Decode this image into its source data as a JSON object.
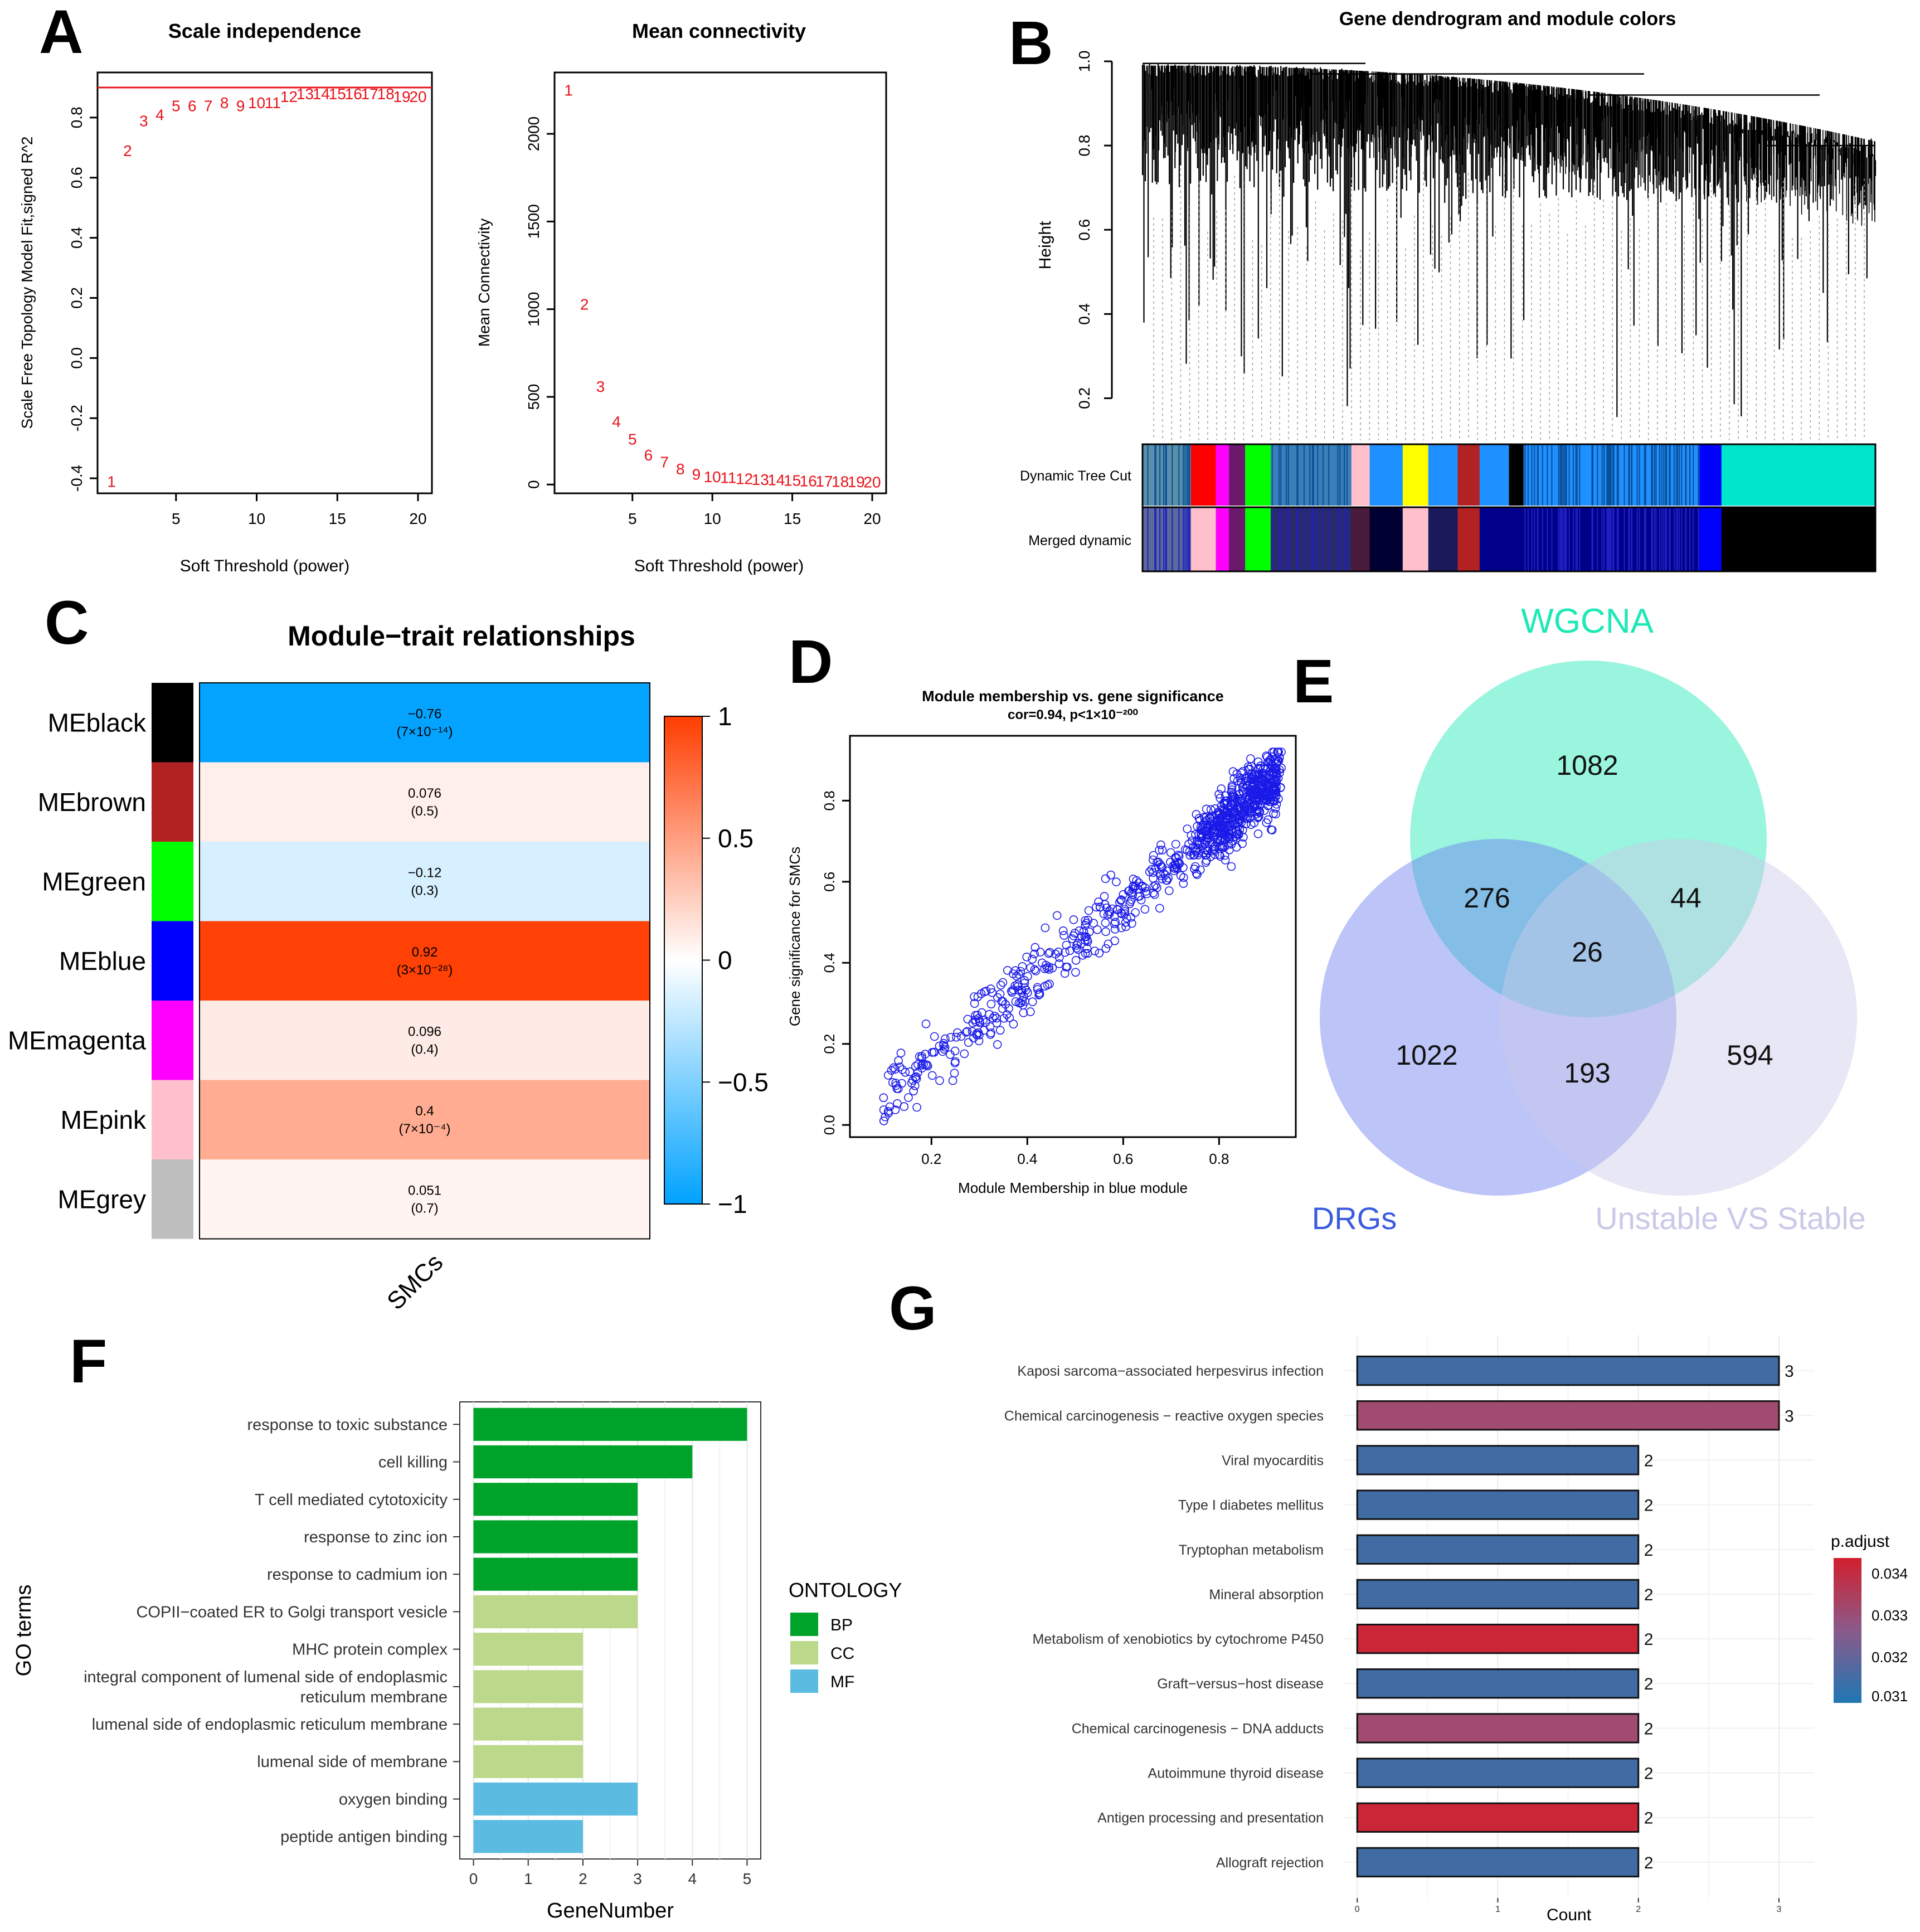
{
  "colors": {
    "red_marker": "#e8141c",
    "wgcna": "#1de9b6",
    "drgs": "#3a5be0",
    "unstable": "#c9c9e8",
    "bp": "#00a32a",
    "cc": "#bcd88a",
    "mf": "#5bbbe0",
    "kegg_blue": "#1f77b4",
    "kegg_mid": "#a24b70",
    "kegg_red": "#d1202e",
    "scatter_blue": "#1a1ae8",
    "heat_pos": "#ff3d00",
    "heat_neg": "#00a2ff"
  },
  "panels": {
    "A": "A",
    "B": "B",
    "C": "C",
    "D": "D",
    "E": "E",
    "F": "F",
    "G": "G"
  },
  "chart_data": [
    {
      "id": "A1",
      "type": "scatter",
      "title": "Scale independence",
      "xlabel": "Soft Threshold (power)",
      "ylabel": "Scale Free Topology Model Fit,signed R^2",
      "xlim": [
        1,
        20
      ],
      "ylim": [
        -0.45,
        0.95
      ],
      "xticks": [
        5,
        10,
        15,
        20
      ],
      "yticks": [
        -0.4,
        -0.2,
        0.0,
        0.2,
        0.4,
        0.6,
        0.8
      ],
      "ytick_labels": [
        "-0.4",
        "-0.2",
        "0.0",
        "0.2",
        "0.4",
        "0.6",
        "0.8"
      ],
      "hline": 0.9,
      "x": [
        1,
        2,
        3,
        4,
        5,
        6,
        7,
        8,
        9,
        10,
        11,
        12,
        13,
        14,
        15,
        16,
        17,
        18,
        19,
        20
      ],
      "y": [
        -0.41,
        0.69,
        0.79,
        0.81,
        0.84,
        0.84,
        0.84,
        0.85,
        0.84,
        0.85,
        0.85,
        0.87,
        0.88,
        0.88,
        0.88,
        0.88,
        0.88,
        0.88,
        0.87,
        0.87
      ],
      "labels": [
        "1",
        "2",
        "3",
        "4",
        "5",
        "6",
        "7",
        "8",
        "9",
        "10",
        "11",
        "12",
        "13",
        "14",
        "15",
        "16",
        "17",
        "18",
        "19",
        "20"
      ]
    },
    {
      "id": "A2",
      "type": "scatter",
      "title": "Mean connectivity",
      "xlabel": "Soft Threshold (power)",
      "ylabel": "Mean Connectivity",
      "xlim": [
        1,
        20
      ],
      "ylim": [
        -50,
        2350
      ],
      "xticks": [
        5,
        10,
        15,
        20
      ],
      "yticks": [
        0,
        500,
        1000,
        1500,
        2000
      ],
      "ytick_labels": [
        "0",
        "500",
        "1000",
        "1500",
        "2000"
      ],
      "x": [
        1,
        2,
        3,
        4,
        5,
        6,
        7,
        8,
        9,
        10,
        11,
        12,
        13,
        14,
        15,
        16,
        17,
        18,
        19,
        20
      ],
      "y": [
        2250,
        1030,
        560,
        360,
        260,
        170,
        130,
        90,
        60,
        45,
        40,
        35,
        30,
        28,
        25,
        22,
        20,
        18,
        16,
        15
      ],
      "labels": [
        "1",
        "2",
        "3",
        "4",
        "5",
        "6",
        "7",
        "8",
        "9",
        "10",
        "11",
        "12",
        "13",
        "14",
        "15",
        "16",
        "17",
        "18",
        "19",
        "20"
      ]
    },
    {
      "id": "B",
      "type": "dendrogram",
      "title": "Gene dendrogram and module colors",
      "ylabel": "Height",
      "ylim": [
        0.1,
        1.0
      ],
      "yticks": [
        0.2,
        0.4,
        0.6,
        0.8,
        1.0
      ],
      "ytick_labels": [
        "0.2",
        "0.4",
        "0.6",
        "0.8",
        "1.0"
      ],
      "rows": [
        "Dynamic Tree Cut",
        "Merged dynamic"
      ]
    },
    {
      "id": "C",
      "type": "heatmap",
      "title": "Module−trait relationships",
      "xlabel": "SMCs",
      "modules": [
        "MEblack",
        "MEbrown",
        "MEgreen",
        "MEblue",
        "MEmagenta",
        "MEpink",
        "MEgrey"
      ],
      "module_colors": [
        "#000000",
        "#b22222",
        "#00ff00",
        "#0000ff",
        "#ff00ff",
        "#ffc0cb",
        "#bebebe"
      ],
      "values": [
        -0.76,
        0.076,
        -0.12,
        0.92,
        0.096,
        0.4,
        0.051
      ],
      "value_labels": [
        "−0.76",
        "0.076",
        "−0.12",
        "0.92",
        "0.096",
        "0.4",
        "0.051"
      ],
      "pvalues": [
        "(7×10⁻¹⁴)",
        "(0.5)",
        "(0.3)",
        "(3×10⁻²⁸)",
        "(0.4)",
        "(7×10⁻⁴)",
        "(0.7)"
      ],
      "legend_ticks": [
        "1",
        "0.5",
        "0",
        "−0.5",
        "−1"
      ]
    },
    {
      "id": "D",
      "type": "scatter",
      "title": "Module membership vs. gene significance",
      "subtitle": "cor=0.94, p<1×10⁻²⁰⁰",
      "xlabel": "Module Membership in blue module",
      "ylabel": "Gene significance for  SMCs",
      "xlim": [
        0.03,
        0.96
      ],
      "ylim": [
        -0.03,
        0.96
      ],
      "xticks": [
        "0.2",
        "0.4",
        "0.6",
        "0.8"
      ],
      "yticks": [
        "0.0",
        "0.2",
        "0.4",
        "0.6",
        "0.8"
      ],
      "cor": 0.94,
      "n_points": 900
    },
    {
      "id": "E",
      "type": "venn",
      "sets": [
        "WGCNA",
        "DRGs",
        "Unstable VS Stable"
      ],
      "regions": {
        "wgcna_only": "1082",
        "drgs_only": "1022",
        "unstable_only": "594",
        "wgcna_drgs": "276",
        "wgcna_unstable": "44",
        "drgs_unstable": "193",
        "all_three": "26"
      }
    },
    {
      "id": "F",
      "type": "bar",
      "orientation": "horizontal",
      "xlabel": "GeneNumber",
      "ylabel": "GO terms",
      "xticks": [
        "0",
        "1",
        "2",
        "3",
        "4",
        "5"
      ],
      "xlim": [
        0,
        5.2
      ],
      "legend_title": "ONTOLOGY",
      "legend": [
        "BP",
        "CC",
        "MF"
      ],
      "categories": [
        "response to toxic substance",
        "cell killing",
        "T cell mediated cytotoxicity",
        "response to zinc ion",
        "response to cadmium ion",
        "COPII−coated ER to Golgi transport vesicle",
        "MHC protein complex",
        "integral component of lumenal side of endoplasmic reticulum membrane",
        "lumenal side of endoplasmic reticulum membrane",
        "lumenal side of membrane",
        "oxygen binding",
        "peptide antigen binding"
      ],
      "label_lines": [
        [
          "response to toxic substance"
        ],
        [
          "cell killing"
        ],
        [
          "T cell mediated cytotoxicity"
        ],
        [
          "response to zinc ion"
        ],
        [
          "response to cadmium ion"
        ],
        [
          "COPII−coated ER to Golgi transport vesicle"
        ],
        [
          "MHC protein complex"
        ],
        [
          "integral component of lumenal side of endoplasmic",
          "reticulum membrane"
        ],
        [
          "lumenal side of endoplasmic reticulum membrane"
        ],
        [
          "lumenal side of membrane"
        ],
        [
          "oxygen binding"
        ],
        [
          "peptide antigen binding"
        ]
      ],
      "values": [
        5,
        4,
        3,
        3,
        3,
        3,
        2,
        2,
        2,
        2,
        3,
        2
      ],
      "ontology": [
        "BP",
        "BP",
        "BP",
        "BP",
        "BP",
        "CC",
        "CC",
        "CC",
        "CC",
        "CC",
        "MF",
        "MF"
      ]
    },
    {
      "id": "G",
      "type": "bar",
      "orientation": "horizontal",
      "xlabel": "Count",
      "xticks": [
        "0",
        "1",
        "2",
        "3"
      ],
      "xlim": [
        0,
        3.2
      ],
      "legend_title": "p.adjust",
      "legend_ticks": [
        "0.034",
        "0.033",
        "0.032",
        "0.031"
      ],
      "categories": [
        "Kaposi sarcoma−associated herpesvirus infection",
        "Chemical carcinogenesis − reactive oxygen species",
        "Viral myocarditis",
        "Type I diabetes mellitus",
        "Tryptophan metabolism",
        "Mineral absorption",
        "Metabolism of xenobiotics by cytochrome P450",
        "Graft−versus−host disease",
        "Chemical carcinogenesis − DNA adducts",
        "Autoimmune thyroid disease",
        "Antigen processing and presentation",
        "Allograft rejection"
      ],
      "values": [
        3,
        3,
        2,
        2,
        2,
        2,
        2,
        2,
        2,
        2,
        2,
        2
      ],
      "value_labels": [
        "3",
        "3",
        "2",
        "2",
        "2",
        "2",
        "2",
        "2",
        "2",
        "2",
        "2",
        "2"
      ],
      "p_adjust": [
        0.031,
        0.0325,
        0.031,
        0.031,
        0.031,
        0.031,
        0.0342,
        0.031,
        0.0325,
        0.031,
        0.0342,
        0.031
      ]
    }
  ]
}
